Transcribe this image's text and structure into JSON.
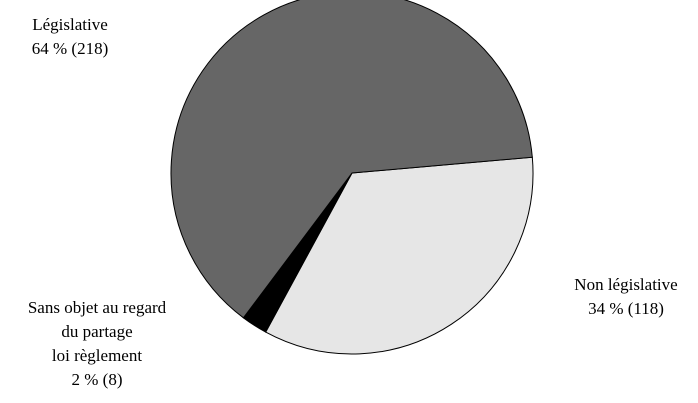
{
  "chart_data": {
    "type": "pie",
    "slices": [
      {
        "key": "legislative",
        "label": "Législative",
        "percent_label": "64 % (218)",
        "value": 218,
        "color": "#666666"
      },
      {
        "key": "non-legislative",
        "label": "Non législative",
        "percent_label": "34 % (118)",
        "value": 118,
        "color": "#e6e6e6"
      },
      {
        "key": "sans-objet",
        "label_lines": [
          "Sans objet au regard",
          "du partage",
          "loi règlement"
        ],
        "percent_label": "2 % (8)",
        "value": 8,
        "color": "#000000"
      }
    ]
  }
}
